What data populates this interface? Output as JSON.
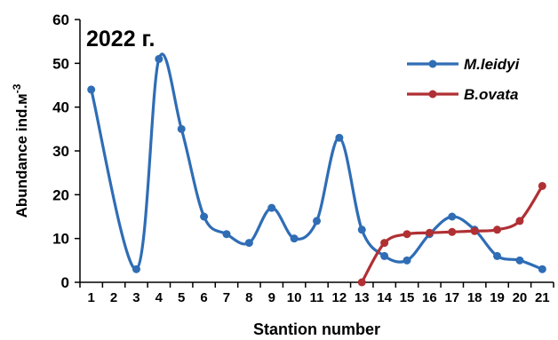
{
  "chart_data": {
    "type": "line",
    "annotation": "2022 г.",
    "xlabel": "Stantion number",
    "ylabel_text": "Abundance ind.м",
    "ylabel_sup": "-3",
    "x": [
      1,
      2,
      3,
      4,
      5,
      6,
      7,
      8,
      9,
      10,
      11,
      12,
      13,
      14,
      15,
      16,
      17,
      18,
      19,
      20,
      21
    ],
    "ylim": [
      0,
      60
    ],
    "yticks": [
      0,
      10,
      20,
      30,
      40,
      50,
      60
    ],
    "legend_position": "top-right",
    "grid": false,
    "series": [
      {
        "name": "M.leidyi",
        "color": "#2F6DB5",
        "points": [
          [
            1,
            44
          ],
          [
            3,
            3
          ],
          [
            4,
            51
          ],
          [
            5,
            35
          ],
          [
            6,
            15
          ],
          [
            7,
            11
          ],
          [
            8,
            9
          ],
          [
            9,
            17
          ],
          [
            10,
            10
          ],
          [
            11,
            14
          ],
          [
            12,
            33
          ],
          [
            13,
            12
          ],
          [
            14,
            6
          ],
          [
            15,
            5
          ],
          [
            16,
            11
          ],
          [
            17,
            15
          ],
          [
            18,
            12
          ],
          [
            19,
            6
          ],
          [
            20,
            5
          ],
          [
            21,
            3
          ]
        ]
      },
      {
        "name": "B.ovata",
        "color": "#B03034",
        "points": [
          [
            13,
            0
          ],
          [
            14,
            9
          ],
          [
            15,
            11
          ],
          [
            16,
            11.3
          ],
          [
            17,
            11.5
          ],
          [
            18,
            11.7
          ],
          [
            19,
            12
          ],
          [
            20,
            14
          ],
          [
            21,
            22
          ]
        ]
      }
    ]
  }
}
